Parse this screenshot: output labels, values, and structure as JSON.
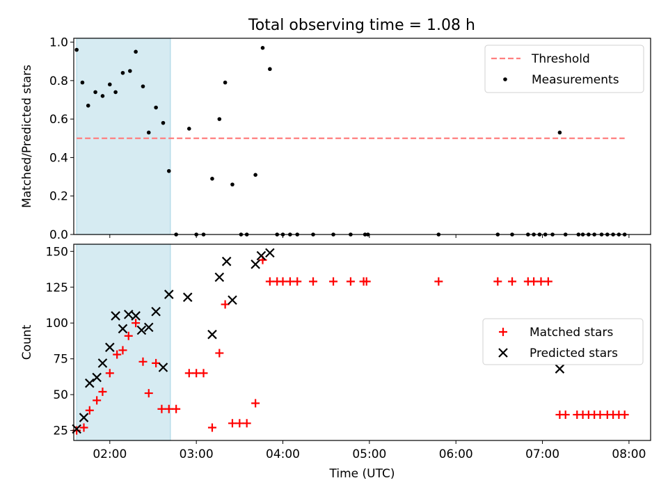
{
  "title": "Total observing time = 1.08 h",
  "colors": {
    "threshold": "#ff7f7f",
    "shade": "#add8e6",
    "measurements": "#000000",
    "matched": "#ff0000",
    "predicted": "#000000"
  },
  "chart_data": [
    {
      "type": "scatter",
      "ylabel": "Matched/Predicted stars",
      "ylim": [
        0,
        1.02
      ],
      "yticks": [
        0.0,
        0.2,
        0.4,
        0.6,
        0.8,
        1.0
      ],
      "ytick_labels": [
        "0.0",
        "0.2",
        "0.4",
        "0.6",
        "0.8",
        "1.0"
      ],
      "xlim": [
        "01:35",
        "08:15"
      ],
      "shaded_interval": [
        "01:37",
        "02:42"
      ],
      "threshold": {
        "name": "Threshold",
        "value": 0.5,
        "x_range": [
          "01:37",
          "07:57"
        ]
      },
      "legend": {
        "position": "top-right",
        "entries": [
          "Threshold",
          "Measurements"
        ]
      },
      "series": [
        {
          "name": "Measurements",
          "marker": "dot",
          "points": [
            [
              "01:37",
              0.96
            ],
            [
              "01:41",
              0.79
            ],
            [
              "01:45",
              0.67
            ],
            [
              "01:50",
              0.74
            ],
            [
              "01:55",
              0.72
            ],
            [
              "02:00",
              0.78
            ],
            [
              "02:04",
              0.74
            ],
            [
              "02:09",
              0.84
            ],
            [
              "02:14",
              0.85
            ],
            [
              "02:18",
              0.95
            ],
            [
              "02:23",
              0.77
            ],
            [
              "02:27",
              0.53
            ],
            [
              "02:32",
              0.66
            ],
            [
              "02:37",
              0.58
            ],
            [
              "02:41",
              0.33
            ],
            [
              "02:46",
              0.0
            ],
            [
              "02:55",
              0.55
            ],
            [
              "03:00",
              0.0
            ],
            [
              "03:05",
              0.0
            ],
            [
              "03:11",
              0.29
            ],
            [
              "03:16",
              0.6
            ],
            [
              "03:20",
              0.79
            ],
            [
              "03:25",
              0.26
            ],
            [
              "03:31",
              0.0
            ],
            [
              "03:35",
              0.0
            ],
            [
              "03:41",
              0.31
            ],
            [
              "03:46",
              0.97
            ],
            [
              "03:51",
              0.86
            ],
            [
              "03:56",
              0.0
            ],
            [
              "04:00",
              0.0
            ],
            [
              "04:05",
              0.0
            ],
            [
              "04:10",
              0.0
            ],
            [
              "04:21",
              0.0
            ],
            [
              "04:35",
              0.0
            ],
            [
              "04:47",
              0.0
            ],
            [
              "04:57",
              0.0
            ],
            [
              "04:59",
              0.0
            ],
            [
              "05:48",
              0.0
            ],
            [
              "06:29",
              0.0
            ],
            [
              "06:39",
              0.0
            ],
            [
              "06:50",
              0.0
            ],
            [
              "06:54",
              0.0
            ],
            [
              "06:58",
              0.0
            ],
            [
              "07:02",
              0.0
            ],
            [
              "07:07",
              0.0
            ],
            [
              "07:12",
              0.53
            ],
            [
              "07:16",
              0.0
            ],
            [
              "07:25",
              0.0
            ],
            [
              "07:28",
              0.0
            ],
            [
              "07:32",
              0.0
            ],
            [
              "07:36",
              0.0
            ],
            [
              "07:41",
              0.0
            ],
            [
              "07:45",
              0.0
            ],
            [
              "07:49",
              0.0
            ],
            [
              "07:53",
              0.0
            ],
            [
              "07:57",
              0.0
            ]
          ]
        }
      ]
    },
    {
      "type": "scatter",
      "ylabel": "Count",
      "xlabel": "Time (UTC)",
      "ylim": [
        18,
        155
      ],
      "yticks": [
        25,
        50,
        75,
        100,
        125,
        150
      ],
      "ytick_labels": [
        "25",
        "50",
        "75",
        "100",
        "125",
        "150"
      ],
      "xlim": [
        "01:35",
        "08:15"
      ],
      "xticks": [
        "02:00",
        "03:00",
        "04:00",
        "05:00",
        "06:00",
        "07:00",
        "08:00"
      ],
      "xtick_labels": [
        "02:00",
        "03:00",
        "04:00",
        "05:00",
        "06:00",
        "07:00",
        "08:00"
      ],
      "shaded_interval": [
        "01:37",
        "02:42"
      ],
      "legend": {
        "position": "center-right",
        "entries": [
          "Matched stars",
          "Predicted stars"
        ]
      },
      "series": [
        {
          "name": "Matched stars",
          "marker": "plus",
          "points": [
            [
              "01:37",
              25
            ],
            [
              "01:42",
              27
            ],
            [
              "01:46",
              39
            ],
            [
              "01:51",
              46
            ],
            [
              "01:55",
              52
            ],
            [
              "02:00",
              65
            ],
            [
              "02:05",
              78
            ],
            [
              "02:09",
              81
            ],
            [
              "02:13",
              91
            ],
            [
              "02:18",
              100
            ],
            [
              "02:23",
              73
            ],
            [
              "02:27",
              51
            ],
            [
              "02:32",
              72
            ],
            [
              "02:36",
              40
            ],
            [
              "02:41",
              40
            ],
            [
              "02:46",
              40
            ],
            [
              "02:55",
              65
            ],
            [
              "03:00",
              65
            ],
            [
              "03:05",
              65
            ],
            [
              "03:11",
              27
            ],
            [
              "03:16",
              79
            ],
            [
              "03:20",
              113
            ],
            [
              "03:25",
              30
            ],
            [
              "03:30",
              30
            ],
            [
              "03:35",
              30
            ],
            [
              "03:41",
              44
            ],
            [
              "03:46",
              144
            ],
            [
              "03:51",
              129
            ],
            [
              "03:56",
              129
            ],
            [
              "04:00",
              129
            ],
            [
              "04:05",
              129
            ],
            [
              "04:10",
              129
            ],
            [
              "04:21",
              129
            ],
            [
              "04:35",
              129
            ],
            [
              "04:47",
              129
            ],
            [
              "04:56",
              129
            ],
            [
              "04:58",
              129
            ],
            [
              "05:48",
              129
            ],
            [
              "06:29",
              129
            ],
            [
              "06:39",
              129
            ],
            [
              "06:50",
              129
            ],
            [
              "06:54",
              129
            ],
            [
              "06:59",
              129
            ],
            [
              "07:04",
              129
            ],
            [
              "07:12",
              36
            ],
            [
              "07:16",
              36
            ],
            [
              "07:24",
              36
            ],
            [
              "07:28",
              36
            ],
            [
              "07:32",
              36
            ],
            [
              "07:36",
              36
            ],
            [
              "07:40",
              36
            ],
            [
              "07:45",
              36
            ],
            [
              "07:49",
              36
            ],
            [
              "07:53",
              36
            ],
            [
              "07:57",
              36
            ]
          ]
        },
        {
          "name": "Predicted stars",
          "marker": "x",
          "points": [
            [
              "01:37",
              26
            ],
            [
              "01:42",
              34
            ],
            [
              "01:46",
              58
            ],
            [
              "01:51",
              62
            ],
            [
              "01:55",
              72
            ],
            [
              "02:00",
              83
            ],
            [
              "02:04",
              105
            ],
            [
              "02:09",
              96
            ],
            [
              "02:13",
              106
            ],
            [
              "02:18",
              105
            ],
            [
              "02:22",
              95
            ],
            [
              "02:27",
              97
            ],
            [
              "02:32",
              108
            ],
            [
              "02:37",
              69
            ],
            [
              "02:41",
              120
            ],
            [
              "02:54",
              118
            ],
            [
              "03:11",
              92
            ],
            [
              "03:16",
              132
            ],
            [
              "03:21",
              143
            ],
            [
              "03:25",
              116
            ],
            [
              "03:41",
              141
            ],
            [
              "03:45",
              147
            ],
            [
              "03:51",
              149
            ],
            [
              "07:12",
              68
            ]
          ]
        }
      ]
    }
  ]
}
